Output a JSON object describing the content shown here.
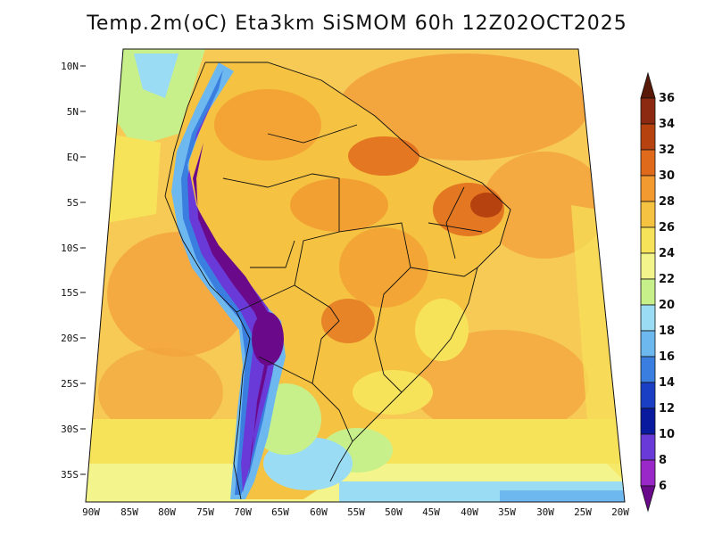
{
  "title": "Temp.2m(oC) Eta3km SiSMOM 60h 12Z02OCT2025",
  "lat_labels": [
    "10N",
    "5N",
    "EQ",
    "5S",
    "10S",
    "15S",
    "20S",
    "25S",
    "30S",
    "35S"
  ],
  "lon_labels": [
    "90W",
    "85W",
    "80W",
    "75W",
    "70W",
    "65W",
    "60W",
    "55W",
    "50W",
    "45W",
    "40W",
    "35W",
    "30W",
    "25W",
    "20W"
  ],
  "colorbar": {
    "labels": [
      "36",
      "34",
      "32",
      "30",
      "28",
      "26",
      "24",
      "22",
      "20",
      "18",
      "16",
      "14",
      "12",
      "10",
      "8",
      "6"
    ],
    "colors": [
      "#5a1a0a",
      "#8b2a10",
      "#b5420f",
      "#e06a1c",
      "#f29a30",
      "#f5c242",
      "#f7e35a",
      "#f3f58c",
      "#c8f08a",
      "#9bdcf5",
      "#6eb8f0",
      "#3a7ee0",
      "#1a3fc4",
      "#0a1a9e",
      "#6a3ad8",
      "#9a28c8",
      "#6a0a8a"
    ]
  }
}
